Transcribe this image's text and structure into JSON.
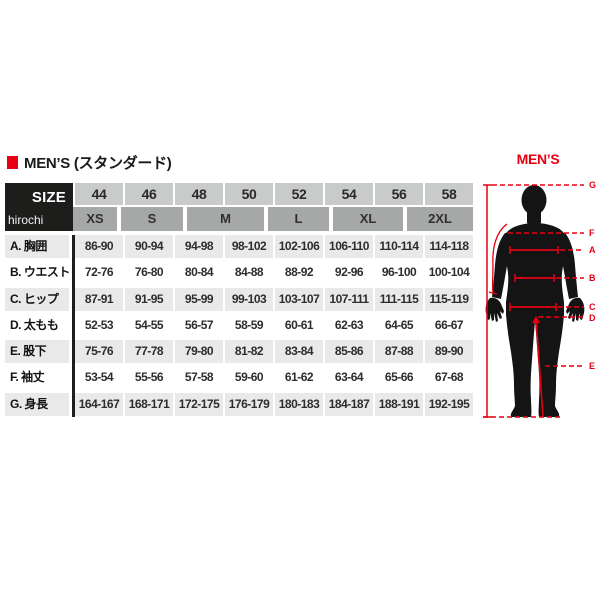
{
  "header": {
    "title": "MEN’S (スタンダード)"
  },
  "size_box": {
    "label": "SIZE",
    "watermark": "hirochi"
  },
  "table": {
    "numeric_sizes": [
      "44",
      "46",
      "48",
      "50",
      "52",
      "54",
      "56",
      "58"
    ],
    "letter_sizes": [
      "XS",
      "S",
      "M",
      "L",
      "XL",
      "2XL"
    ],
    "rows": [
      {
        "label": "A. 胸囲",
        "values": [
          "86-90",
          "90-94",
          "94-98",
          "98-102",
          "102-106",
          "106-110",
          "110-114",
          "114-118"
        ]
      },
      {
        "label": "B. ウエスト",
        "values": [
          "72-76",
          "76-80",
          "80-84",
          "84-88",
          "88-92",
          "92-96",
          "96-100",
          "100-104"
        ]
      },
      {
        "label": "C. ヒップ",
        "values": [
          "87-91",
          "91-95",
          "95-99",
          "99-103",
          "103-107",
          "107-111",
          "111-115",
          "115-119"
        ]
      },
      {
        "label": "D. 太もも",
        "values": [
          "52-53",
          "54-55",
          "56-57",
          "58-59",
          "60-61",
          "62-63",
          "64-65",
          "66-67"
        ]
      },
      {
        "label": "E. 股下",
        "values": [
          "75-76",
          "77-78",
          "79-80",
          "81-82",
          "83-84",
          "85-86",
          "87-88",
          "89-90"
        ]
      },
      {
        "label": "F. 袖丈",
        "values": [
          "53-54",
          "55-56",
          "57-58",
          "59-60",
          "61-62",
          "63-64",
          "65-66",
          "67-68"
        ]
      },
      {
        "label": "G. 身長",
        "values": [
          "164-167",
          "168-171",
          "172-175",
          "176-179",
          "180-183",
          "184-187",
          "188-191",
          "192-195"
        ]
      }
    ]
  },
  "figure": {
    "title": "MEN’S",
    "labels": [
      "G",
      "F",
      "A",
      "B",
      "C",
      "D",
      "E"
    ]
  },
  "colors": {
    "accent_red": "#e60012",
    "size_cell_bg": "#1d1d1b",
    "numeric_header_bg": "#c9caca",
    "letter_header_bg": "#a6a7a7",
    "alt_row_bg": "#e9e9ea",
    "body_silhouette": "#141414"
  }
}
